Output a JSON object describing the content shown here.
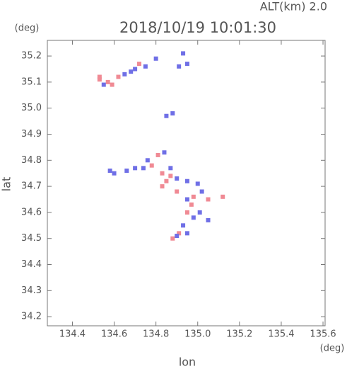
{
  "chart_data": {
    "type": "scatter",
    "title": "2018/10/19 10:01:30",
    "subtitle": "ALT(km) 2.0",
    "y_unit": "(deg)",
    "x_unit": "(deg)",
    "xlabel": "lon",
    "ylabel": "lat",
    "xlim": [
      134.28,
      135.61
    ],
    "ylim": [
      34.165,
      35.26
    ],
    "xticks": [
      134.4,
      134.6,
      134.8,
      {
        "value": 135,
        "label": "135.0"
      },
      135.2,
      135.4,
      135.6
    ],
    "yticks": [
      34.2,
      34.3,
      34.4,
      34.5,
      34.6,
      34.7,
      34.8,
      34.9,
      {
        "value": 35,
        "label": "35.0"
      },
      35.1,
      35.2
    ],
    "series": [
      {
        "color": "#f08a94",
        "x": [
          134.53,
          134.57,
          134.62,
          134.72,
          134.81,
          134.83,
          134.85,
          134.87,
          134.78,
          134.9,
          134.97,
          135.05,
          134.98,
          134.88,
          134.91,
          135.12,
          134.53,
          134.59,
          134.83,
          134.95
        ],
        "values": [
          35.11,
          35.1,
          35.12,
          35.17,
          34.82,
          34.75,
          34.72,
          34.74,
          34.78,
          34.68,
          34.63,
          34.65,
          34.66,
          34.5,
          34.52,
          34.66,
          35.12,
          35.09,
          34.7,
          34.6
        ]
      },
      {
        "color": "#6f6fe6",
        "x": [
          134.55,
          134.65,
          134.68,
          134.7,
          134.75,
          134.8,
          134.93,
          134.91,
          134.95,
          134.85,
          134.88,
          134.58,
          134.66,
          134.7,
          134.74,
          134.76,
          134.87,
          134.9,
          134.95,
          135.0,
          135.02,
          134.95,
          135.01,
          134.98,
          135.05,
          134.9,
          134.93,
          134.95,
          134.6,
          134.84
        ],
        "values": [
          35.09,
          35.13,
          35.14,
          35.15,
          35.16,
          35.19,
          35.21,
          35.16,
          35.17,
          34.97,
          34.98,
          34.76,
          34.76,
          34.77,
          34.77,
          34.8,
          34.77,
          34.73,
          34.72,
          34.71,
          34.68,
          34.65,
          34.6,
          34.58,
          34.57,
          34.51,
          34.55,
          34.52,
          34.75,
          34.83
        ]
      }
    ]
  }
}
